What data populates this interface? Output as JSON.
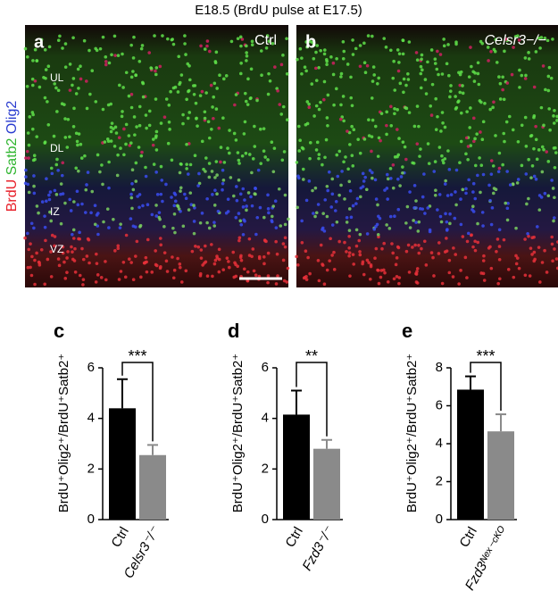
{
  "figure": {
    "title": "E18.5 (BrdU pulse at E17.5)",
    "channels": [
      {
        "name": "BrdU",
        "color": "#e8202a"
      },
      {
        "name": "Satb2",
        "color": "#2fb52f"
      },
      {
        "name": "Olig2",
        "color": "#2a3ccf"
      }
    ],
    "panels": [
      {
        "label": "a",
        "condition": "Ctrl"
      },
      {
        "label": "b",
        "condition": "Celsr3−/−"
      }
    ],
    "layers": [
      "UL",
      "DL",
      "IZ",
      "VZ"
    ]
  },
  "chart_data": [
    {
      "type": "bar",
      "label": "c",
      "y_label": "BrdU⁺Olig2⁺/BrdU⁺Satb2⁺",
      "categories": [
        "Ctrl",
        "Celsr3⁻/⁻"
      ],
      "values": [
        4.4,
        2.55
      ],
      "errors": [
        1.15,
        0.4
      ],
      "colors": [
        "#000000",
        "#8a8a8a"
      ],
      "ylim": [
        0,
        6
      ],
      "yticks": [
        0,
        2,
        4,
        6
      ],
      "significance": "***"
    },
    {
      "type": "bar",
      "label": "d",
      "y_label": "BrdU⁺Olig2⁺/BrdU⁺Satb2⁺",
      "categories": [
        "Ctrl",
        "Fzd3⁻/⁻"
      ],
      "values": [
        4.15,
        2.8
      ],
      "errors": [
        0.95,
        0.35
      ],
      "colors": [
        "#000000",
        "#8a8a8a"
      ],
      "ylim": [
        0,
        6
      ],
      "yticks": [
        0,
        2,
        4,
        6
      ],
      "significance": "**"
    },
    {
      "type": "bar",
      "label": "e",
      "y_label": "BrdU⁺Olig2⁺/BrdU⁺Satb2⁺",
      "categories": [
        "Ctrl",
        "Fzd3ᴺᵉˣ⁻ᶜᴷᴼ"
      ],
      "values": [
        6.85,
        4.65
      ],
      "errors": [
        0.7,
        0.9
      ],
      "colors": [
        "#000000",
        "#8a8a8a"
      ],
      "ylim": [
        0,
        8
      ],
      "yticks": [
        0,
        2,
        4,
        6,
        8
      ],
      "significance": "***"
    }
  ]
}
